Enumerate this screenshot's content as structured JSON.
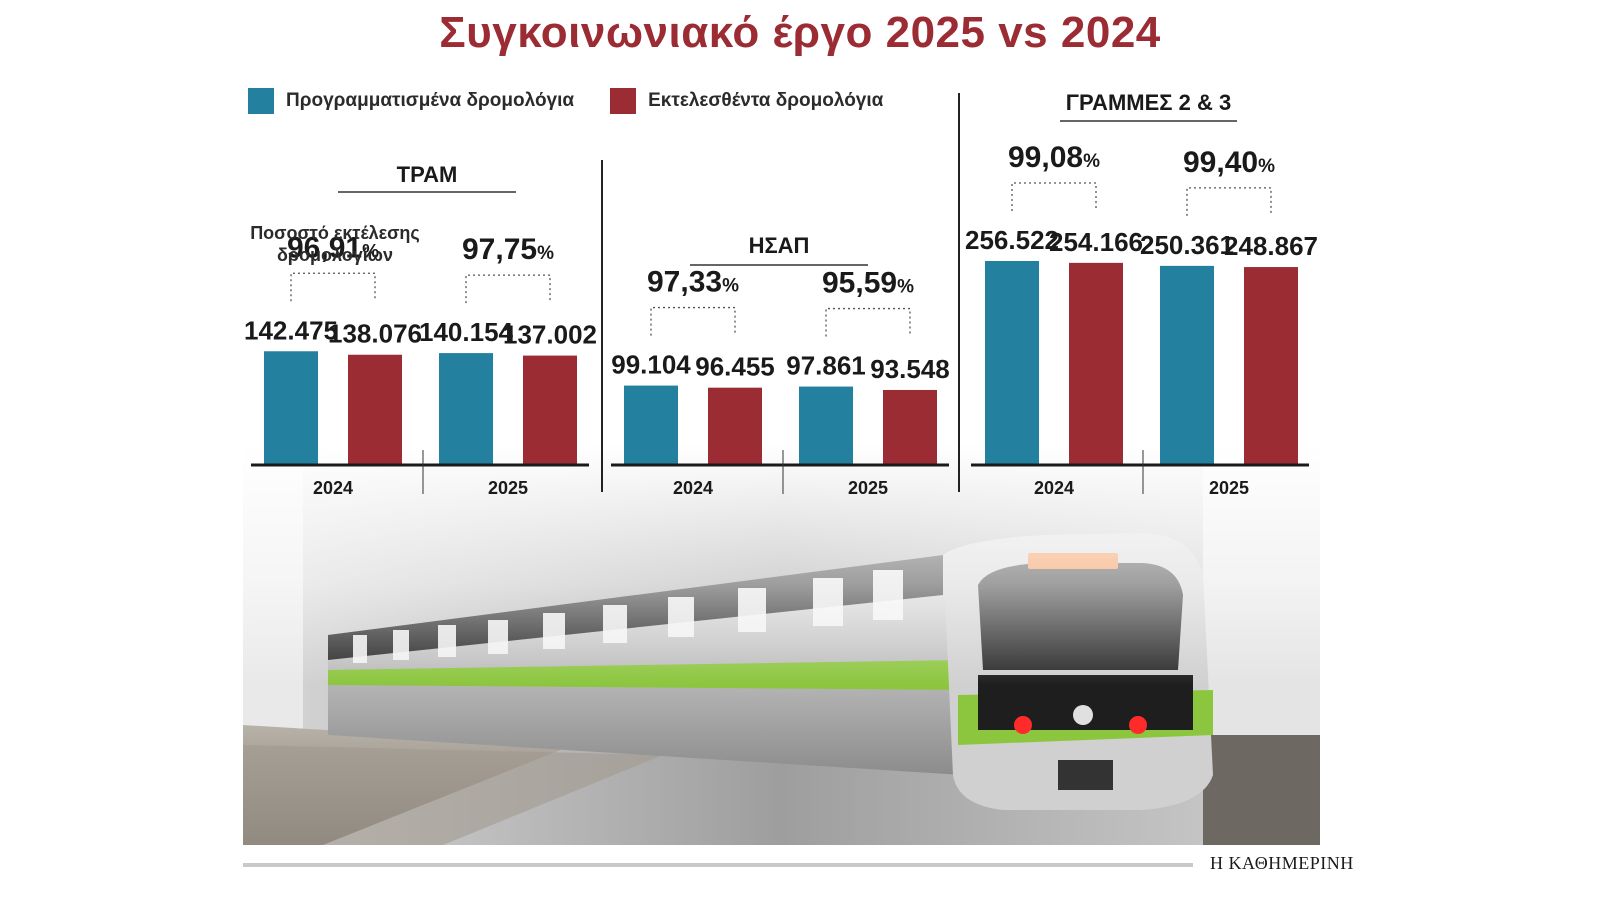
{
  "title": "Συγκοινωνιακό έργο 2025 vs 2024",
  "legend": [
    {
      "label": "Προγραμματισμένα δρομολόγια",
      "color": "#23809e"
    },
    {
      "label": "Εκτελεσθέντα δρομολόγια",
      "color": "#9b2c34"
    }
  ],
  "note": {
    "line1": "Ποσοστό εκτέλεσης",
    "line2": "δρομολογίων"
  },
  "footer": {
    "brand": "Η ΚΑΘΗΜΕΡΙΝΗ"
  },
  "chart_data": [
    {
      "type": "bar",
      "title": "ΤΡΑΜ",
      "categories": [
        "2024",
        "2025"
      ],
      "series": [
        {
          "name": "Προγραμματισμένα δρομολόγια",
          "values": [
            142475,
            140154
          ],
          "labels": [
            "142.475",
            "140.154"
          ],
          "color": "#23809e"
        },
        {
          "name": "Εκτελεσθέντα δρομολόγια",
          "values": [
            138076,
            137002
          ],
          "labels": [
            "138.076",
            "137.002"
          ],
          "color": "#9b2c34"
        }
      ],
      "percentages": [
        "96,91",
        "97,75"
      ],
      "percent_sign": "%",
      "ylim": [
        0,
        256522
      ]
    },
    {
      "type": "bar",
      "title": "ΗΣΑΠ",
      "categories": [
        "2024",
        "2025"
      ],
      "series": [
        {
          "name": "Προγραμματισμένα δρομολόγια",
          "values": [
            99104,
            97861
          ],
          "labels": [
            "99.104",
            "97.861"
          ],
          "color": "#23809e"
        },
        {
          "name": "Εκτελεσθέντα δρομολόγια",
          "values": [
            96455,
            93548
          ],
          "labels": [
            "96.455",
            "93.548"
          ],
          "color": "#9b2c34"
        }
      ],
      "percentages": [
        "97,33",
        "95,59"
      ],
      "percent_sign": "%",
      "ylim": [
        0,
        256522
      ]
    },
    {
      "type": "bar",
      "title": "ΓΡΑΜΜΕΣ 2 & 3",
      "categories": [
        "2024",
        "2025"
      ],
      "series": [
        {
          "name": "Προγραμματισμένα δρομολόγια",
          "values": [
            256522,
            250361
          ],
          "labels": [
            "256.522",
            "250.361"
          ],
          "color": "#23809e"
        },
        {
          "name": "Εκτελεσθέντα δρομολόγια",
          "values": [
            254166,
            248867
          ],
          "labels": [
            "254.166",
            "248.867"
          ],
          "color": "#9b2c34"
        }
      ],
      "percentages": [
        "99,08",
        "99,40"
      ],
      "percent_sign": "%",
      "ylim": [
        0,
        256522
      ]
    }
  ]
}
